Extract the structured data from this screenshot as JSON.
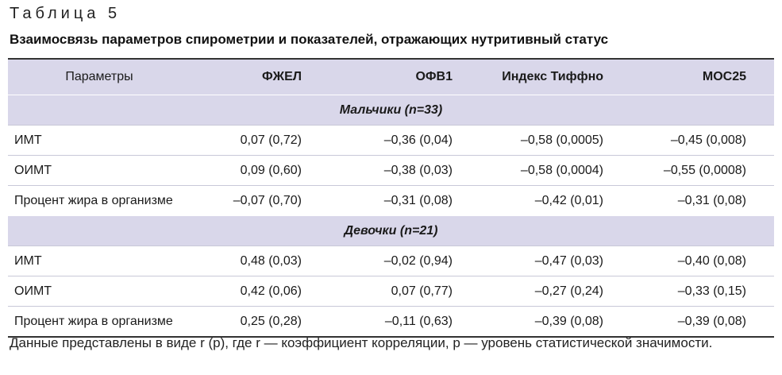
{
  "table_label": "Таблица 5",
  "title": "Взаимосвязь параметров спирометрии и показателей, отражающих нутритивный статус",
  "columns": [
    "Параметры",
    "ФЖЕЛ",
    "ОФВ1",
    "Индекс Тиффно",
    "МОС25"
  ],
  "groups": [
    {
      "label": "Мальчики (n=33)",
      "rows": [
        [
          "ИМТ",
          "0,07 (0,72)",
          "–0,36 (0,04)",
          "–0,58 (0,0005)",
          "–0,45 (0,008)"
        ],
        [
          "ОИМТ",
          "0,09 (0,60)",
          "–0,38 (0,03)",
          "–0,58 (0,0004)",
          "–0,55 (0,0008)"
        ],
        [
          "Процент жира в организме",
          "–0,07 (0,70)",
          "–0,31 (0,08)",
          "–0,42 (0,01)",
          "–0,31 (0,08)"
        ]
      ]
    },
    {
      "label": "Девочки (n=21)",
      "rows": [
        [
          "ИМТ",
          "0,48 (0,03)",
          "–0,02 (0,94)",
          "–0,47 (0,03)",
          "–0,40 (0,08)"
        ],
        [
          "ОИМТ",
          "0,42 (0,06)",
          "0,07 (0,77)",
          "–0,27 (0,24)",
          "–0,33 (0,15)"
        ],
        [
          "Процент жира в организме",
          "0,25 (0,28)",
          "–0,11 (0,63)",
          "–0,39 (0,08)",
          "–0,39 (0,08)"
        ]
      ]
    }
  ],
  "note": "Данные представлены в виде r (p), где r — коэффициент корреляции, p — уровень статистической значимости.",
  "colors": {
    "header_bg": "#d9d7ea",
    "border": "#333333"
  }
}
